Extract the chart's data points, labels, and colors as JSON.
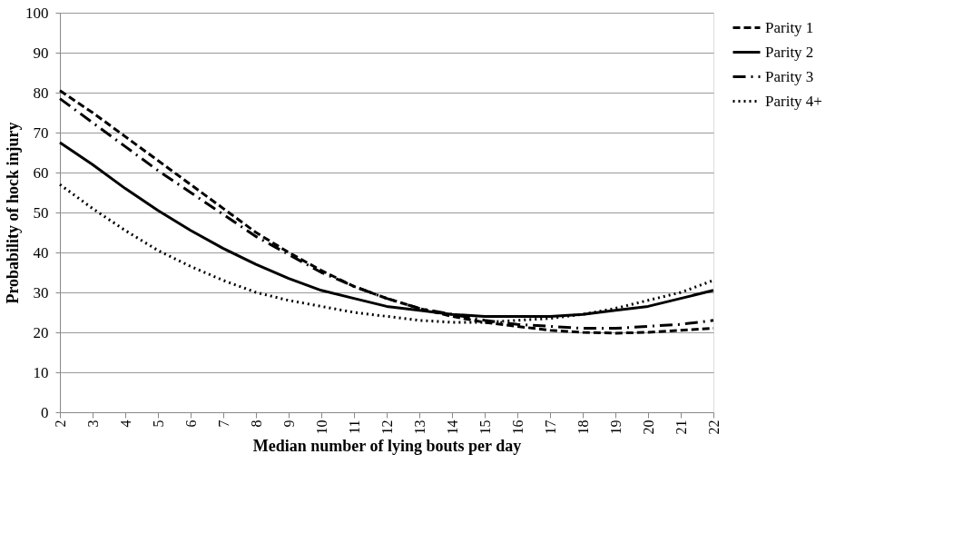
{
  "chart_data": {
    "type": "line",
    "xlabel": "Median number of lying bouts per day",
    "ylabel": "Probability of hock injury",
    "x": [
      2,
      3,
      4,
      5,
      6,
      7,
      8,
      9,
      10,
      11,
      12,
      13,
      14,
      15,
      16,
      17,
      18,
      19,
      20,
      21,
      22
    ],
    "series": [
      {
        "name": "Parity 1",
        "color": "#000000",
        "line_style": "dashed",
        "values": [
          80.5,
          75,
          69,
          63,
          57,
          51,
          45,
          40,
          35.5,
          31.5,
          28.5,
          26,
          24,
          22.5,
          21.5,
          20.5,
          20,
          19.8,
          20,
          20.5,
          21
        ]
      },
      {
        "name": "Parity 2",
        "color": "#000000",
        "line_style": "solid",
        "values": [
          67.5,
          62,
          56,
          50.5,
          45.5,
          41,
          37,
          33.5,
          30.5,
          28.5,
          26.5,
          25.5,
          24.5,
          24,
          24,
          24,
          24.5,
          25.5,
          26.5,
          28.5,
          30.5
        ]
      },
      {
        "name": "Parity 3",
        "color": "#000000",
        "line_style": "dashdot",
        "values": [
          78.5,
          72.5,
          66.5,
          60.5,
          55,
          49.5,
          44,
          39.5,
          35,
          31.5,
          28.5,
          26,
          24.5,
          23,
          22,
          21.5,
          21,
          21,
          21.5,
          22,
          23
        ]
      },
      {
        "name": "Parity 4+",
        "color": "#000000",
        "line_style": "dotted",
        "values": [
          57,
          51,
          45.5,
          40.5,
          36.5,
          33,
          30,
          28,
          26.5,
          25,
          24,
          23,
          22.5,
          22.5,
          23,
          23.5,
          24.5,
          26,
          28,
          30,
          33
        ]
      }
    ],
    "xlim": [
      2,
      22
    ],
    "xticks": [
      2,
      3,
      4,
      5,
      6,
      7,
      8,
      9,
      10,
      11,
      12,
      13,
      14,
      15,
      16,
      17,
      18,
      19,
      20,
      21,
      22
    ],
    "ylim": [
      0,
      100
    ],
    "yticks": [
      0,
      10,
      20,
      30,
      40,
      50,
      60,
      70,
      80,
      90,
      100
    ],
    "grid": "y",
    "legend": "right",
    "marker": "none"
  }
}
